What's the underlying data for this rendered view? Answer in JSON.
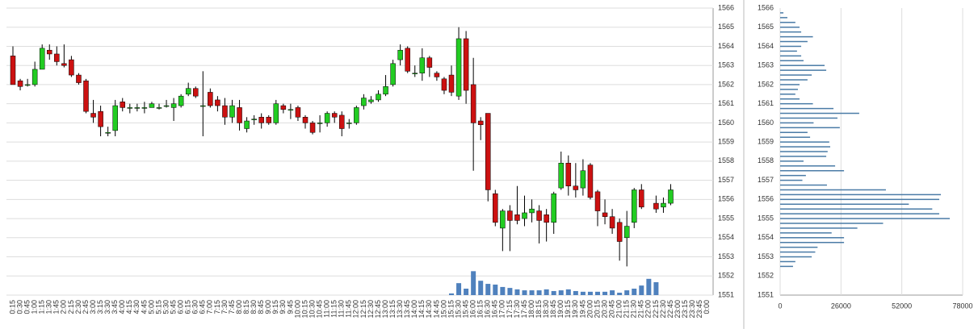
{
  "chart_data": [
    {
      "type": "candlestick",
      "categories": [
        "0:15",
        "0:30",
        "0:45",
        "1:00",
        "1:15",
        "1:30",
        "1:45",
        "2:00",
        "2:15",
        "2:30",
        "2:45",
        "3:00",
        "3:15",
        "3:30",
        "3:45",
        "4:00",
        "4:15",
        "4:30",
        "4:45",
        "5:00",
        "5:15",
        "5:30",
        "5:45",
        "6:00",
        "6:15",
        "6:30",
        "6:45",
        "7:00",
        "7:15",
        "7:30",
        "7:45",
        "8:00",
        "8:15",
        "8:30",
        "8:45",
        "9:00",
        "9:15",
        "9:30",
        "9:45",
        "10:00",
        "10:15",
        "10:30",
        "10:45",
        "11:00",
        "11:15",
        "11:30",
        "11:45",
        "12:00",
        "12:15",
        "12:30",
        "12:45",
        "13:00",
        "13:15",
        "13:30",
        "13:45",
        "14:00",
        "14:15",
        "14:30",
        "14:45",
        "15:00",
        "15:15",
        "15:30",
        "15:45",
        "16:00",
        "16:15",
        "16:30",
        "16:45",
        "17:00",
        "17:15",
        "17:30",
        "17:45",
        "18:00",
        "18:15",
        "18:30",
        "18:45",
        "19:00",
        "19:15",
        "19:30",
        "19:45",
        "20:00",
        "20:15",
        "20:30",
        "20:45",
        "21:00",
        "21:15",
        "21:30",
        "21:45",
        "22:00",
        "22:15",
        "22:30",
        "22:45",
        "23:00",
        "23:15",
        "23:30",
        "23:45",
        "0:00"
      ],
      "open": [
        1563.5,
        1562.2,
        1562,
        1562,
        1562.8,
        1563.8,
        1563.6,
        1563.1,
        1563.3,
        1562.5,
        1562.2,
        1560.5,
        1560.6,
        1559.5,
        1559.6,
        1561.1,
        1560.8,
        1560.8,
        1560.8,
        1560.8,
        1560.8,
        1560.9,
        1560.8,
        1560.9,
        1561.5,
        1561.8,
        1560.9,
        1561.6,
        1561.2,
        1560.9,
        1560.3,
        1560.8,
        1559.7,
        1560.2,
        1560.3,
        1560.3,
        1560,
        1560.9,
        1560.7,
        1560.8,
        1560.3,
        1560,
        1560,
        1560,
        1560.5,
        1560.4,
        1560,
        1560,
        1560.9,
        1561.1,
        1561.2,
        1561.5,
        1562,
        1563.3,
        1563.9,
        1562.6,
        1562.6,
        1563.4,
        1562.6,
        1562.3,
        1562.5,
        1561.4,
        1564.4,
        1562,
        1560.1,
        1560.5,
        1556.3,
        1554.5,
        1555.4,
        1555.2,
        1555,
        1555.3,
        1555.4,
        1555.2,
        1554.8,
        1556.6,
        1557.9,
        1556.7,
        1556.6,
        1557.8,
        1556.4,
        1555.3,
        1555.1,
        1554.8,
        1554,
        1554.8,
        1556.5,
        null,
        1555.8,
        1555.6,
        1555.8,
        null,
        null,
        null,
        null,
        null
      ],
      "high": [
        1564,
        1562.3,
        1562.3,
        1563.2,
        1564.1,
        1564.1,
        1564,
        1564.1,
        1563.5,
        1562.6,
        1562.3,
        1561.2,
        1560.9,
        1559.8,
        1561.2,
        1561.3,
        1561,
        1561,
        1561.1,
        1561.1,
        1561,
        1561.2,
        1561.3,
        1561.5,
        1562.1,
        1561.9,
        1562.7,
        1561.8,
        1561.4,
        1561.3,
        1561.2,
        1561.2,
        1560.3,
        1560.4,
        1560.5,
        1560.4,
        1561.2,
        1561,
        1561,
        1560.9,
        1560.4,
        1560.1,
        1560.4,
        1560.6,
        1560.6,
        1560.6,
        1560.2,
        1560.9,
        1561.5,
        1561.4,
        1561.7,
        1562.5,
        1563.3,
        1564.1,
        1564,
        1563,
        1563.9,
        1563.5,
        1562.7,
        1562.4,
        1563,
        1565,
        1564.8,
        1563.4,
        1560.3,
        1560.5,
        1556.5,
        1555.5,
        1555.7,
        1556.7,
        1556.2,
        1556,
        1555.7,
        1555.5,
        1556.4,
        1558.5,
        1558.3,
        1557.9,
        1558.1,
        1557.9,
        1556.5,
        1556,
        1555.5,
        1555,
        1555.4,
        1556.6,
        1556.8,
        null,
        1556.2,
        1556.1,
        1556.8,
        null,
        null,
        null,
        null,
        null
      ],
      "low": [
        1562,
        1561.7,
        1561.9,
        1561.9,
        1562.8,
        1563.3,
        1563,
        1562.9,
        1562.4,
        1562,
        1560.5,
        1560,
        1559.3,
        1559.3,
        1559.3,
        1560.6,
        1560.5,
        1560.6,
        1560.5,
        1560.8,
        1560.7,
        1560.8,
        1560.1,
        1560.8,
        1561.4,
        1561.3,
        1559.3,
        1560.8,
        1560.6,
        1559.9,
        1560,
        1559.6,
        1559.5,
        1559.9,
        1559.7,
        1559.9,
        1559.9,
        1560.5,
        1560.2,
        1560.1,
        1559.7,
        1559.4,
        1559.5,
        1559.8,
        1560,
        1559.3,
        1559.7,
        1559.9,
        1560.7,
        1561,
        1561.1,
        1561.4,
        1561.9,
        1563,
        1562.6,
        1562.4,
        1562.2,
        1562.4,
        1562.2,
        1561.5,
        1561.4,
        1561.2,
        1561,
        1557.5,
        1559.1,
        1555.9,
        1554.6,
        1553.3,
        1553.3,
        1554.7,
        1554.6,
        1554.8,
        1553.7,
        1553.8,
        1554.2,
        1556.5,
        1556.2,
        1556.1,
        1556.2,
        1556,
        1554.6,
        1554.7,
        1554.2,
        1552.8,
        1552.5,
        1554.5,
        1555.5,
        null,
        1555.3,
        1555.3,
        1555.7,
        null,
        null,
        null,
        null,
        null
      ],
      "close": [
        1562,
        1561.9,
        1562,
        1562.8,
        1563.9,
        1563.6,
        1563.2,
        1563,
        1562.5,
        1562.1,
        1560.6,
        1560.3,
        1559.8,
        1559.5,
        1560.9,
        1560.8,
        1560.8,
        1560.8,
        1560.8,
        1561,
        1560.8,
        1560.9,
        1561,
        1561.4,
        1561.8,
        1561.4,
        1560.9,
        1560.9,
        1560.9,
        1560.3,
        1560.9,
        1560,
        1560.1,
        1560.2,
        1560,
        1560,
        1561,
        1560.7,
        1560.7,
        1560.3,
        1560,
        1559.5,
        1560,
        1560.5,
        1560.3,
        1559.7,
        1560,
        1560.8,
        1561.3,
        1561.2,
        1561.5,
        1561.9,
        1563.1,
        1563.8,
        1562.7,
        1562.6,
        1563.4,
        1562.9,
        1562.4,
        1561.7,
        1561.6,
        1564.4,
        1561.7,
        1560,
        1559.9,
        1556.5,
        1554.8,
        1555.4,
        1554.9,
        1554.9,
        1555.3,
        1555.5,
        1554.9,
        1554.8,
        1556.3,
        1557.9,
        1556.7,
        1556.5,
        1557.5,
        1556.1,
        1555.4,
        1555.1,
        1554.5,
        1553.8,
        1554.6,
        1556.5,
        1555.6,
        null,
        1555.5,
        1555.8,
        1556.5,
        null,
        null,
        null,
        null,
        null
      ],
      "volume": [
        null,
        null,
        null,
        null,
        null,
        null,
        null,
        null,
        null,
        null,
        null,
        null,
        null,
        null,
        null,
        null,
        null,
        null,
        null,
        null,
        null,
        null,
        null,
        null,
        null,
        null,
        null,
        null,
        null,
        null,
        null,
        null,
        null,
        null,
        null,
        null,
        null,
        null,
        null,
        null,
        null,
        null,
        null,
        null,
        null,
        null,
        null,
        null,
        null,
        null,
        null,
        null,
        null,
        null,
        null,
        null,
        null,
        null,
        null,
        null,
        70,
        500,
        270,
        1000,
        600,
        470,
        440,
        340,
        300,
        240,
        200,
        200,
        200,
        240,
        170,
        200,
        240,
        170,
        140,
        140,
        140,
        140,
        200,
        100,
        200,
        270,
        400,
        680,
        540,
        null,
        null,
        null,
        null,
        null,
        null,
        null
      ],
      "up_color": "#22cc22",
      "down_color": "#cc1111",
      "volume_color": "#4f81bd",
      "ylim": [
        1551,
        1566
      ],
      "yticks": [
        1551,
        1552,
        1553,
        1554,
        1555,
        1556,
        1557,
        1558,
        1559,
        1560,
        1561,
        1562,
        1563,
        1564,
        1565,
        1566
      ],
      "y2lim": [
        0,
        12000
      ],
      "grid": true
    },
    {
      "type": "hbar",
      "y": [
        1565.75,
        1565.5,
        1565.25,
        1565,
        1564.75,
        1564.5,
        1564.25,
        1564,
        1563.75,
        1563.5,
        1563.25,
        1563,
        1562.75,
        1562.5,
        1562.25,
        1562,
        1561.75,
        1561.5,
        1561.25,
        1561,
        1560.75,
        1560.5,
        1560.25,
        1560,
        1559.75,
        1559.5,
        1559.25,
        1559,
        1558.75,
        1558.5,
        1558.25,
        1558,
        1557.75,
        1557.5,
        1557.25,
        1557,
        1556.75,
        1556.5,
        1556.25,
        1556,
        1555.75,
        1555.5,
        1555.25,
        1555,
        1554.75,
        1554.5,
        1554.25,
        1554,
        1553.75,
        1553.5,
        1553.25,
        1553,
        1552.75,
        1552.5
      ],
      "values": [
        1400,
        3100,
        6500,
        8300,
        9000,
        14000,
        11700,
        9000,
        7200,
        9000,
        10000,
        19000,
        19700,
        13500,
        11700,
        8300,
        7600,
        6500,
        8300,
        14000,
        22800,
        33800,
        24500,
        14300,
        25500,
        11700,
        12800,
        21000,
        21400,
        20300,
        19700,
        10000,
        23500,
        27300,
        11000,
        9500,
        20000,
        45200,
        68700,
        68000,
        55000,
        65000,
        68000,
        72500,
        44000,
        33000,
        22000,
        27300,
        27300,
        16000,
        15000,
        13500,
        6500,
        5500
      ],
      "color": "#4a7ba6",
      "ylim": [
        1551,
        1566
      ],
      "yticks": [
        1551,
        1552,
        1553,
        1554,
        1555,
        1556,
        1557,
        1558,
        1559,
        1560,
        1561,
        1562,
        1563,
        1564,
        1565,
        1566
      ],
      "xlim": [
        0,
        78000
      ],
      "xticks": [
        0,
        26000,
        52000,
        78000
      ],
      "grid": true
    }
  ]
}
